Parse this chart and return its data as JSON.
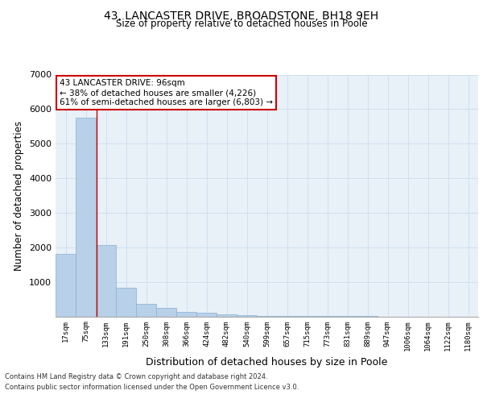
{
  "title_line1": "43, LANCASTER DRIVE, BROADSTONE, BH18 9EH",
  "title_line2": "Size of property relative to detached houses in Poole",
  "xlabel": "Distribution of detached houses by size in Poole",
  "ylabel": "Number of detached properties",
  "categories": [
    "17sqm",
    "75sqm",
    "133sqm",
    "191sqm",
    "250sqm",
    "308sqm",
    "366sqm",
    "424sqm",
    "482sqm",
    "540sqm",
    "599sqm",
    "657sqm",
    "715sqm",
    "773sqm",
    "831sqm",
    "889sqm",
    "947sqm",
    "1006sqm",
    "1064sqm",
    "1122sqm",
    "1180sqm"
  ],
  "values": [
    1800,
    5750,
    2060,
    830,
    370,
    240,
    125,
    95,
    60,
    35,
    20,
    10,
    5,
    3,
    2,
    1,
    0,
    0,
    0,
    0,
    0
  ],
  "bar_color": "#b8d0e8",
  "bar_edge_color": "#8ab0d0",
  "grid_color": "#d0dff0",
  "background_color": "#e8f0f8",
  "annotation_line1": "43 LANCASTER DRIVE: 96sqm",
  "annotation_line2": "← 38% of detached houses are smaller (4,226)",
  "annotation_line3": "61% of semi-detached houses are larger (6,803) →",
  "annotation_box_color": "#ffffff",
  "annotation_border_color": "#cc0000",
  "red_line_x": 1.52,
  "ylim": [
    0,
    7000
  ],
  "yticks": [
    0,
    1000,
    2000,
    3000,
    4000,
    5000,
    6000,
    7000
  ],
  "footer_line1": "Contains HM Land Registry data © Crown copyright and database right 2024.",
  "footer_line2": "Contains public sector information licensed under the Open Government Licence v3.0."
}
